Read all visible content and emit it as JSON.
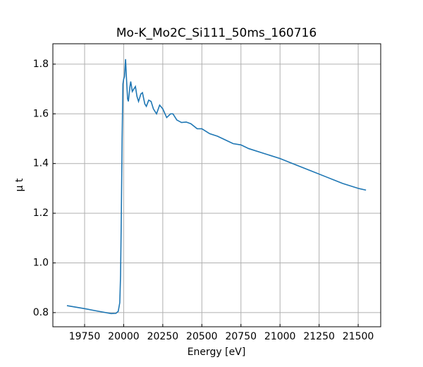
{
  "chart_data": {
    "type": "line",
    "title": "Mo-K_Mo2C_Si111_50ms_160716",
    "x_label": "Energy [eV]",
    "y_label": "μ t",
    "x": [
      19637,
      19750,
      19850,
      19920,
      19950,
      19965,
      19975,
      19980,
      19985,
      19990,
      19995,
      20000,
      20005,
      20012,
      20018,
      20025,
      20030,
      20040,
      20045,
      20055,
      20065,
      20075,
      20085,
      20095,
      20110,
      20120,
      20135,
      20145,
      20160,
      20175,
      20190,
      20210,
      20230,
      20250,
      20275,
      20300,
      20315,
      20340,
      20370,
      20400,
      20430,
      20470,
      20500,
      20550,
      20600,
      20650,
      20700,
      20750,
      20800,
      20900,
      21000,
      21100,
      21200,
      21300,
      21400,
      21500,
      21550
    ],
    "series": [
      {
        "color": "#1f77b4",
        "values": [
          0.828,
          0.816,
          0.804,
          0.796,
          0.797,
          0.805,
          0.84,
          0.95,
          1.2,
          1.5,
          1.72,
          1.74,
          1.75,
          1.82,
          1.74,
          1.66,
          1.65,
          1.71,
          1.73,
          1.69,
          1.7,
          1.71,
          1.67,
          1.65,
          1.68,
          1.685,
          1.64,
          1.63,
          1.655,
          1.65,
          1.62,
          1.6,
          1.635,
          1.62,
          1.585,
          1.6,
          1.6,
          1.575,
          1.565,
          1.567,
          1.56,
          1.54,
          1.54,
          1.52,
          1.51,
          1.495,
          1.48,
          1.475,
          1.46,
          1.44,
          1.42,
          1.395,
          1.37,
          1.345,
          1.32,
          1.3,
          1.293
        ]
      }
    ],
    "xlim": [
      19547,
      21644
    ],
    "ylim": [
      0.743,
      1.882
    ],
    "xticks": [
      19750,
      20000,
      20250,
      20500,
      20750,
      21000,
      21250,
      21500
    ],
    "yticks": [
      {
        "value": 0.8,
        "label": "0.8"
      },
      {
        "value": 1.0,
        "label": "1.0"
      },
      {
        "value": 1.2,
        "label": "1.2"
      },
      {
        "value": 1.4,
        "label": "1.4"
      },
      {
        "value": 1.6,
        "label": "1.6"
      },
      {
        "value": 1.8,
        "label": "1.8"
      }
    ],
    "grid": true
  }
}
